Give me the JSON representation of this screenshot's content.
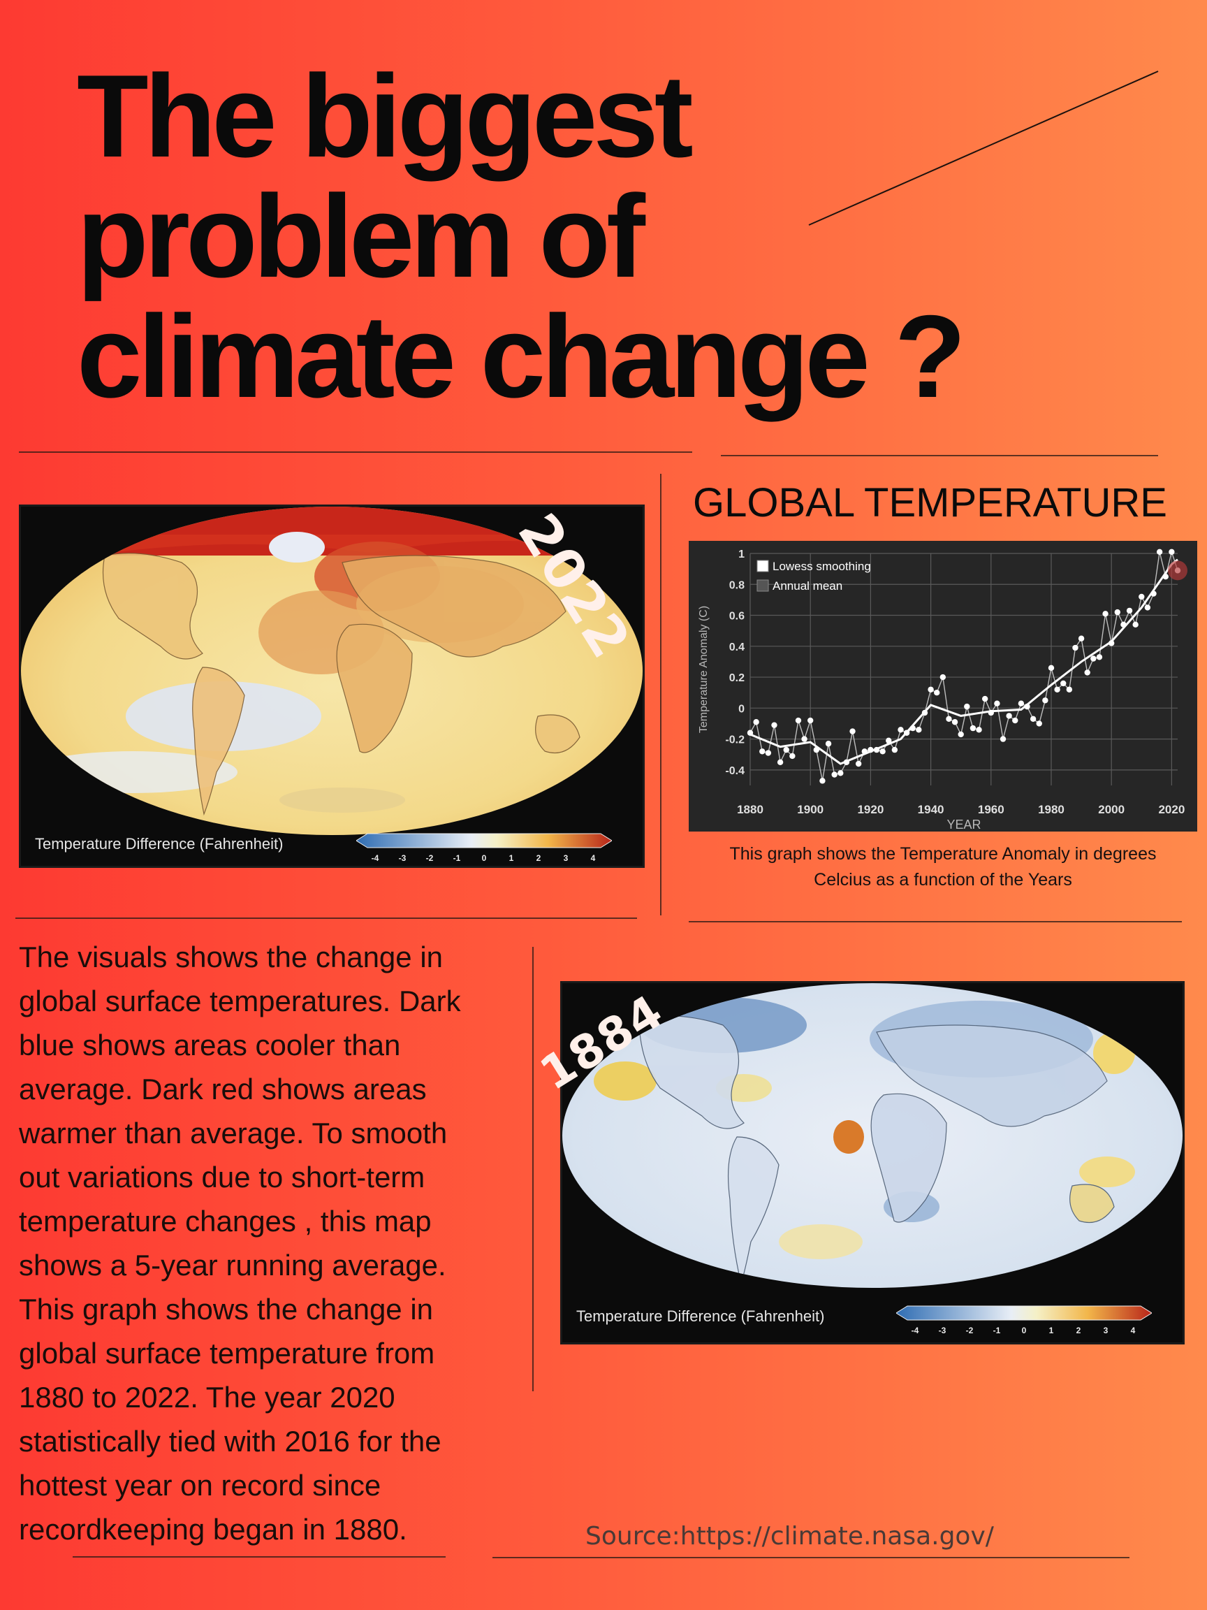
{
  "title_lines": [
    "The biggest",
    "problem of",
    "climate change ?"
  ],
  "maps": {
    "recent": {
      "year": "2022",
      "legend_label": "Temperature Difference (Fahrenheit)",
      "scale_ticks": [
        "-4",
        "-3",
        "-2",
        "-1",
        "0",
        "1",
        "2",
        "3",
        "4"
      ]
    },
    "historic": {
      "year": "1884",
      "legend_label": "Temperature Difference (Fahrenheit)",
      "scale_ticks": [
        "-4",
        "-3",
        "-2",
        "-1",
        "0",
        "1",
        "2",
        "3",
        "4"
      ]
    }
  },
  "chart_section": {
    "heading": "GLOBAL TEMPERATURE",
    "caption_lines": [
      "This graph shows the Temperature Anomaly in degrees",
      "Celcius as a function of the Years"
    ]
  },
  "chart_data": {
    "type": "line",
    "title": "",
    "xlabel": "YEAR",
    "ylabel": "Temperature Anomaly (C)",
    "xlim": [
      1880,
      2022
    ],
    "ylim": [
      -0.5,
      1.0
    ],
    "xticks": [
      1880,
      1900,
      1920,
      1940,
      1960,
      1980,
      2000,
      2020
    ],
    "yticks": [
      1.0,
      0.8,
      0.6,
      0.4,
      0.2,
      0,
      -0.2,
      -0.4
    ],
    "grid": true,
    "legend_position": "top-left",
    "series": [
      {
        "name": "Annual mean",
        "x": [
          1880,
          1882,
          1884,
          1886,
          1888,
          1890,
          1892,
          1894,
          1896,
          1898,
          1900,
          1902,
          1904,
          1906,
          1908,
          1910,
          1912,
          1914,
          1916,
          1918,
          1920,
          1922,
          1924,
          1926,
          1928,
          1930,
          1932,
          1934,
          1936,
          1938,
          1940,
          1942,
          1944,
          1946,
          1948,
          1950,
          1952,
          1954,
          1956,
          1958,
          1960,
          1962,
          1964,
          1966,
          1968,
          1970,
          1972,
          1974,
          1976,
          1978,
          1980,
          1982,
          1984,
          1986,
          1988,
          1990,
          1992,
          1994,
          1996,
          1998,
          2000,
          2002,
          2004,
          2006,
          2008,
          2010,
          2012,
          2014,
          2016,
          2018,
          2020,
          2022
        ],
        "values": [
          -0.16,
          -0.09,
          -0.28,
          -0.29,
          -0.11,
          -0.35,
          -0.27,
          -0.31,
          -0.08,
          -0.2,
          -0.08,
          -0.27,
          -0.47,
          -0.23,
          -0.43,
          -0.42,
          -0.35,
          -0.15,
          -0.36,
          -0.28,
          -0.27,
          -0.27,
          -0.28,
          -0.21,
          -0.27,
          -0.14,
          -0.16,
          -0.13,
          -0.14,
          -0.03,
          0.12,
          0.1,
          0.2,
          -0.07,
          -0.09,
          -0.17,
          0.01,
          -0.13,
          -0.14,
          0.06,
          -0.03,
          0.03,
          -0.2,
          -0.05,
          -0.08,
          0.03,
          0.01,
          -0.07,
          -0.1,
          0.05,
          0.26,
          0.12,
          0.16,
          0.12,
          0.39,
          0.45,
          0.23,
          0.32,
          0.33,
          0.61,
          0.42,
          0.62,
          0.54,
          0.63,
          0.54,
          0.72,
          0.65,
          0.74,
          1.01,
          0.85,
          1.01,
          0.89
        ]
      },
      {
        "name": "Lowess smoothing",
        "x": [
          1880,
          1890,
          1900,
          1910,
          1920,
          1930,
          1940,
          1950,
          1960,
          1970,
          1980,
          1990,
          2000,
          2010,
          2020,
          2022
        ],
        "values": [
          -0.17,
          -0.25,
          -0.22,
          -0.36,
          -0.28,
          -0.2,
          0.02,
          -0.05,
          -0.02,
          -0.01,
          0.15,
          0.3,
          0.43,
          0.65,
          0.93,
          0.96
        ]
      }
    ]
  },
  "body_text_lines": [
    "The visuals shows the change in",
    "global surface temperatures. Dark",
    "blue shows areas cooler than",
    "average. Dark red shows areas",
    "warmer than average. To smooth",
    "out variations due to short-term",
    "temperature changes , this map",
    "shows a 5-year running average.",
    "This graph shows the change in",
    "global surface temperature from",
    "1880 to 2022. The year 2020",
    "statistically tied with 2016 for the",
    "hottest year on record since",
    "recordkeeping began in 1880."
  ],
  "source": "Source:https://climate.nasa.gov/",
  "colors": {
    "background_left": "#fd3a32",
    "background_right": "#ff8a4c",
    "chart_bg": "#262626",
    "cool": "#2f6db3",
    "warm": "#c41a12"
  }
}
